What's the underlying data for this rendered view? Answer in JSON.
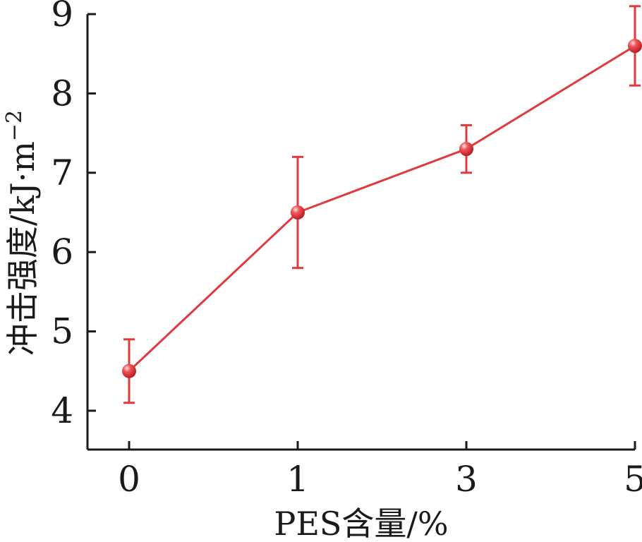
{
  "chart_data": {
    "type": "line",
    "categories": [
      "0",
      "1",
      "3",
      "5"
    ],
    "series": [
      {
        "values": [
          4.5,
          6.5,
          7.3,
          8.6
        ],
        "error_low": [
          4.1,
          5.8,
          7.0,
          8.1
        ],
        "error_high": [
          4.9,
          7.2,
          7.6,
          9.1
        ],
        "color": "#e0393e"
      }
    ],
    "xlabel": "PES含量/%",
    "ylabel": "冲击强度/kJ·m",
    "ylabel_superscript": "−2",
    "ylim": [
      3.5,
      9
    ],
    "yticks": [
      4,
      5,
      6,
      7,
      8,
      9
    ],
    "grid": false,
    "legend": "none",
    "marker": "sphere"
  }
}
